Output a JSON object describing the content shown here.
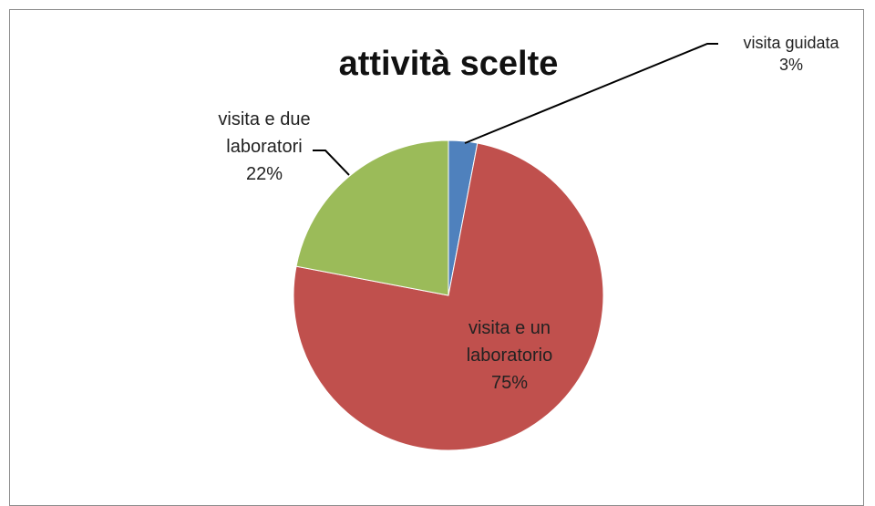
{
  "chart_data": {
    "type": "pie",
    "title": "attività scelte",
    "slices": [
      {
        "name": "visita guidata",
        "value": 3,
        "label_lines": [
          "visita guidata"
        ],
        "percent_label": "3%",
        "color": "#4f81bd"
      },
      {
        "name": "visita e un laboratorio",
        "value": 75,
        "label_lines": [
          "visita e un",
          "laboratorio"
        ],
        "percent_label": "75%",
        "color": "#c0504d"
      },
      {
        "name": "visita e due laboratori",
        "value": 22,
        "label_lines": [
          "visita e due",
          "laboratori"
        ],
        "percent_label": "22%",
        "color": "#9bbb59"
      }
    ],
    "legend": "none"
  }
}
